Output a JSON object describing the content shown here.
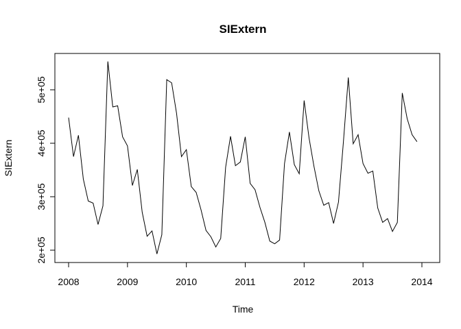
{
  "chart_data": {
    "type": "line",
    "title": "SIExtern",
    "xlabel": "Time",
    "ylabel": "SIExtern",
    "xlim": [
      2008,
      2014
    ],
    "ylim": [
      200000,
      550000
    ],
    "x_ticks": [
      2008,
      2009,
      2010,
      2011,
      2012,
      2013,
      2014
    ],
    "x_tick_labels": [
      "2008",
      "2009",
      "2010",
      "2011",
      "2012",
      "2013",
      "2014"
    ],
    "y_ticks": [
      200000,
      300000,
      400000,
      500000
    ],
    "y_tick_labels": [
      "2e+05",
      "3e+05",
      "4e+05",
      "5e+05"
    ],
    "grid": false,
    "start": 2008,
    "frequency": 12,
    "series": [
      {
        "values": [
          448000,
          375000,
          415000,
          333000,
          292000,
          288000,
          248000,
          283000,
          553000,
          468000,
          470000,
          412000,
          395000,
          321000,
          351000,
          271000,
          226000,
          236000,
          193000,
          229000,
          519000,
          513000,
          456000,
          375000,
          388000,
          319000,
          308000,
          275000,
          237000,
          225000,
          206000,
          222000,
          355000,
          413000,
          358000,
          365000,
          412000,
          325000,
          313000,
          280000,
          252000,
          217000,
          212000,
          219000,
          362000,
          421000,
          360000,
          343000,
          480000,
          410000,
          357000,
          311000,
          284000,
          289000,
          250000,
          290000,
          402000,
          523000,
          399000,
          416000,
          362000,
          344000,
          348000,
          279000,
          252000,
          259000,
          235000,
          252000,
          494000,
          446000,
          416000,
          403000
        ]
      }
    ]
  }
}
